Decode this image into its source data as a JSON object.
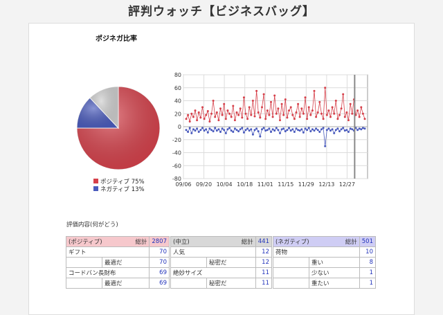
{
  "page": {
    "title": "評判ウォッチ【ビジネスバッグ】"
  },
  "pie": {
    "title": "ポジネガ比率",
    "slices": [
      {
        "name": "ポジティブ",
        "value": 75,
        "color": "#d6404a"
      },
      {
        "name": "ネガティブ",
        "value": 13,
        "color": "#4a5bbd"
      },
      {
        "name": "中立",
        "value": 12,
        "color": "#cfcfcf"
      }
    ],
    "legend": [
      {
        "label": "ポジティブ 75%",
        "color": "#d6404a"
      },
      {
        "label": "ネガティブ 13%",
        "color": "#4a5bbd"
      }
    ]
  },
  "chart_data": {
    "type": "line",
    "ylim": [
      -80,
      80
    ],
    "yticks": [
      "80",
      "60",
      "40",
      "20",
      "0",
      "-20",
      "-40",
      "-60",
      "-80"
    ],
    "xticks": [
      "09/06",
      "09/20",
      "10/04",
      "10/18",
      "11/01",
      "11/15",
      "11/29",
      "12/13",
      "12/27"
    ],
    "series": [
      {
        "color": "#d6404a",
        "values": [
          12,
          18,
          8,
          20,
          15,
          25,
          10,
          22,
          14,
          30,
          12,
          18,
          24,
          8,
          20,
          40,
          15,
          22,
          10,
          28,
          18,
          35,
          12,
          25,
          20,
          15,
          32,
          10,
          22,
          18,
          28,
          14,
          45,
          20,
          12,
          30,
          18,
          40,
          16,
          55,
          22,
          14,
          30,
          50,
          12,
          25,
          18,
          38,
          15,
          48,
          20,
          28,
          10,
          35,
          18,
          42,
          14,
          25,
          30,
          18,
          12,
          22,
          35,
          15,
          28,
          20,
          45,
          12,
          30,
          18,
          25,
          55,
          15,
          22,
          38,
          20,
          12,
          60,
          18,
          25,
          15,
          30,
          20,
          40,
          12,
          18,
          28,
          50,
          15,
          22,
          10,
          35,
          20,
          42,
          18,
          25,
          15,
          30,
          20,
          12
        ]
      },
      {
        "color": "#4a5bbd",
        "values": [
          -5,
          -8,
          -2,
          -10,
          -4,
          -6,
          -3,
          -8,
          -5,
          -2,
          -6,
          -4,
          -9,
          -3,
          -5,
          -7,
          -2,
          -6,
          -4,
          -8,
          -3,
          -5,
          -10,
          -4,
          -2,
          -6,
          -8,
          -3,
          -5,
          -7,
          -4,
          -2,
          -9,
          -5,
          -3,
          -6,
          -4,
          -12,
          -5,
          -3,
          -7,
          -15,
          -4,
          -2,
          -6,
          -5,
          -3,
          -8,
          -4,
          -6,
          -2,
          -5,
          -10,
          -4,
          -3,
          -7,
          -5,
          -2,
          -6,
          -4,
          -8,
          -3,
          -5,
          -6,
          -4,
          -9,
          -3,
          -5,
          -2,
          -7,
          -4,
          -6,
          -3,
          -5,
          -8,
          -4,
          -2,
          -30,
          -5,
          -3,
          -6,
          -4,
          -10,
          -5,
          -3,
          -7,
          -4,
          -2,
          -6,
          -5,
          -8,
          -3,
          -4,
          -6,
          -2,
          -5,
          -3,
          -4,
          -2,
          -3
        ]
      }
    ]
  },
  "eval": {
    "label": "評価内容(何がどう)",
    "positive": {
      "header_label": "(ポジティブ)",
      "total_label": "総計",
      "total": "2807",
      "rows": [
        {
          "label": "ギフト",
          "value": "70",
          "indent": false
        },
        {
          "label": "最適だ",
          "value": "70",
          "indent": true
        },
        {
          "label": "コードバン長財布",
          "value": "69",
          "indent": false
        },
        {
          "label": "最適だ",
          "value": "69",
          "indent": true
        }
      ]
    },
    "neutral": {
      "header_label": "(中立)",
      "total_label": "総計",
      "total": "441",
      "rows": [
        {
          "label": "人気",
          "value": "12",
          "indent": false
        },
        {
          "label": "秘密だ",
          "value": "12",
          "indent": true
        },
        {
          "label": "絶妙サイズ",
          "value": "11",
          "indent": false
        },
        {
          "label": "秘密だ",
          "value": "11",
          "indent": true
        }
      ]
    },
    "negative": {
      "header_label": "(ネガティブ)",
      "total_label": "総計",
      "total": "501",
      "rows": [
        {
          "label": "荷物",
          "value": "10",
          "indent": false
        },
        {
          "label": "重い",
          "value": "8",
          "indent": true
        },
        {
          "label": "少ない",
          "value": "1",
          "indent": true
        },
        {
          "label": "重たい",
          "value": "1",
          "indent": true
        }
      ]
    }
  }
}
